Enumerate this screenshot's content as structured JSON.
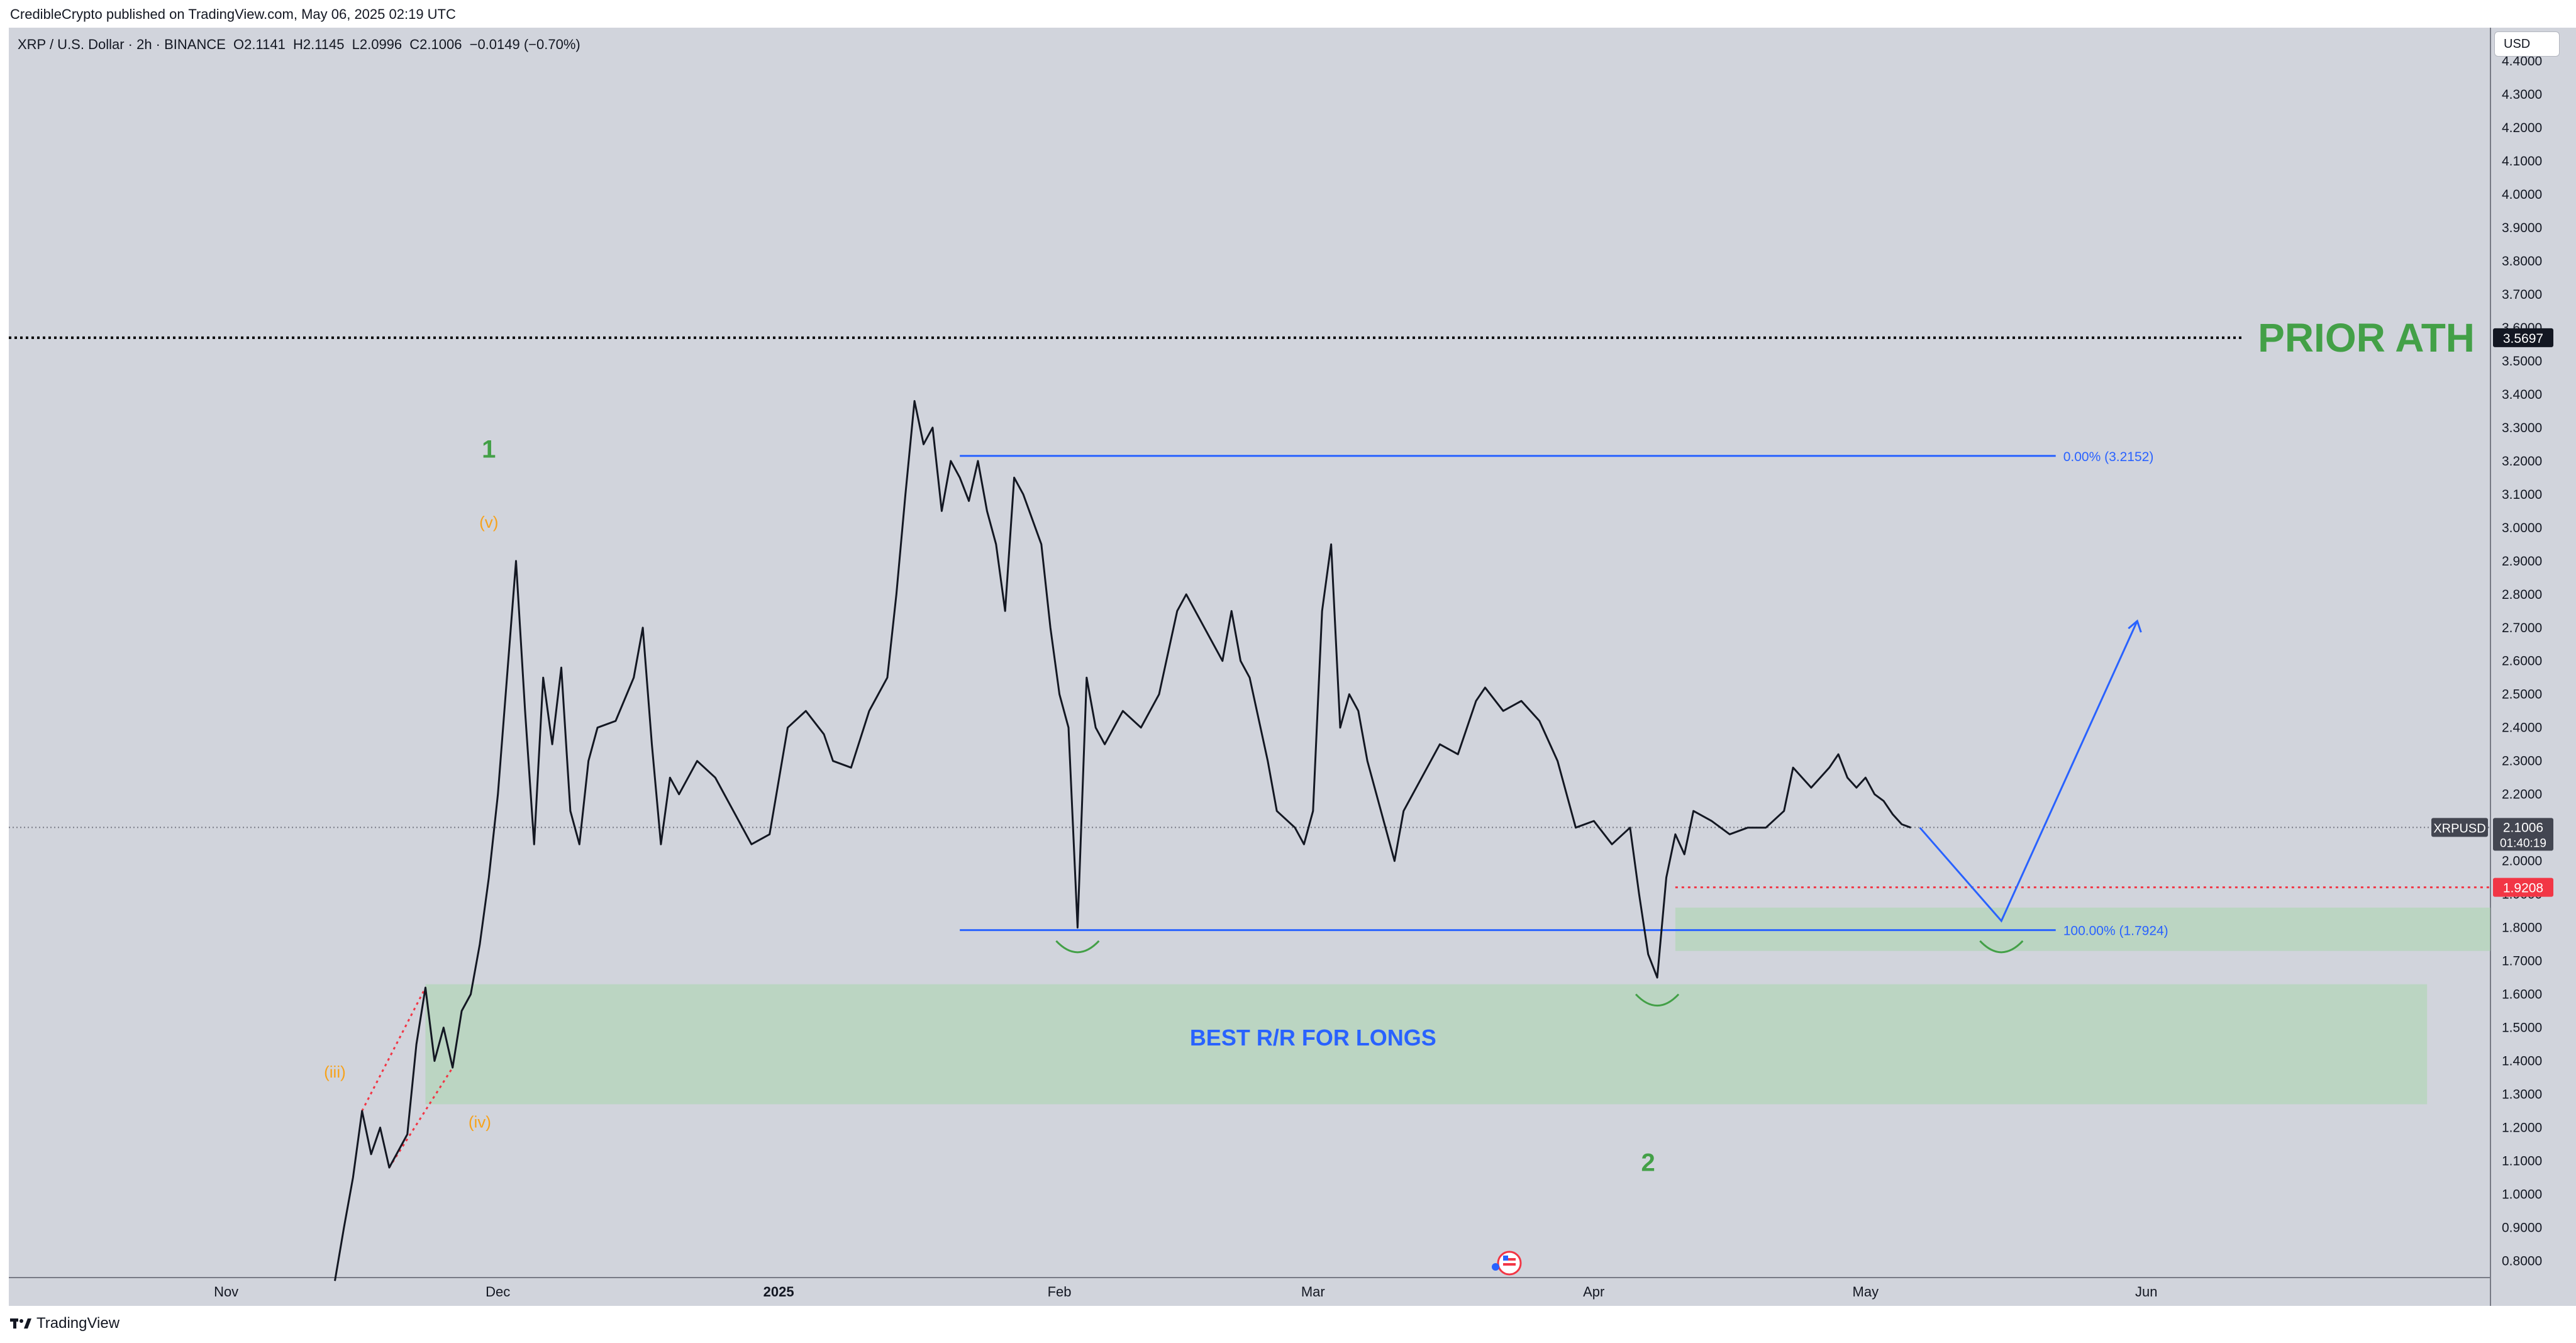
{
  "header": {
    "publish_line": "CredibleCrypto published on TradingView.com, May 06, 2025 02:19 UTC"
  },
  "legend": {
    "symbol": "XRP / U.S. Dollar · 2h · BINANCE",
    "o_label": "O",
    "o": "2.1141",
    "h_label": "H",
    "h": "2.1145",
    "l_label": "L",
    "l": "2.0996",
    "c_label": "C",
    "c": "2.1006",
    "change": "−0.0149 (−0.70%)"
  },
  "currency_button": "USD",
  "footer": {
    "brand": "TradingView"
  },
  "colors": {
    "background": "#d1d4dc",
    "price_line": "#131722",
    "fib_blue": "#2962ff",
    "zone_green": "#a5d6a7",
    "label_green": "#43a047",
    "orange": "#f7a21b",
    "red": "#f23645"
  },
  "chart_data": {
    "type": "line",
    "symbol": "XRPUSD",
    "timeframe": "2h",
    "x_ticks": [
      "Nov",
      "Dec",
      "2025",
      "Feb",
      "Mar",
      "Apr",
      "May",
      "Jun"
    ],
    "x_range": [
      "2024-10-08",
      "2025-07-09"
    ],
    "y_range": [
      0.75,
      4.5
    ],
    "y_ticks": [
      "0.8000",
      "0.9000",
      "1.0000",
      "1.1000",
      "1.2000",
      "1.3000",
      "1.4000",
      "1.5000",
      "1.6000",
      "1.7000",
      "1.8000",
      "1.9000",
      "2.0000",
      "2.1000",
      "2.2000",
      "2.3000",
      "2.4000",
      "2.5000",
      "2.6000",
      "2.7000",
      "2.8000",
      "2.9000",
      "3.0000",
      "3.1000",
      "3.2000",
      "3.3000",
      "3.4000",
      "3.5000",
      "3.6000",
      "3.7000",
      "3.8000",
      "3.9000",
      "4.0000",
      "4.1000",
      "4.2000",
      "4.3000",
      "4.4000"
    ],
    "series": [
      {
        "points": [
          [
            "2024-11-13",
            0.74
          ],
          [
            "2024-11-14",
            0.9
          ],
          [
            "2024-11-15",
            1.05
          ],
          [
            "2024-11-16",
            1.25
          ],
          [
            "2024-11-17",
            1.12
          ],
          [
            "2024-11-18",
            1.2
          ],
          [
            "2024-11-19",
            1.08
          ],
          [
            "2024-11-20",
            1.13
          ],
          [
            "2024-11-21",
            1.18
          ],
          [
            "2024-11-22",
            1.45
          ],
          [
            "2024-11-23",
            1.62
          ],
          [
            "2024-11-24",
            1.4
          ],
          [
            "2024-11-25",
            1.5
          ],
          [
            "2024-11-26",
            1.38
          ],
          [
            "2024-11-27",
            1.55
          ],
          [
            "2024-11-28",
            1.6
          ],
          [
            "2024-11-29",
            1.75
          ],
          [
            "2024-11-30",
            1.95
          ],
          [
            "2024-12-01",
            2.2
          ],
          [
            "2024-12-02",
            2.55
          ],
          [
            "2024-12-03",
            2.9
          ],
          [
            "2024-12-04",
            2.45
          ],
          [
            "2024-12-05",
            2.05
          ],
          [
            "2024-12-06",
            2.55
          ],
          [
            "2024-12-07",
            2.35
          ],
          [
            "2024-12-08",
            2.58
          ],
          [
            "2024-12-09",
            2.15
          ],
          [
            "2024-12-10",
            2.05
          ],
          [
            "2024-12-11",
            2.3
          ],
          [
            "2024-12-12",
            2.4
          ],
          [
            "2024-12-14",
            2.42
          ],
          [
            "2024-12-16",
            2.55
          ],
          [
            "2024-12-17",
            2.7
          ],
          [
            "2024-12-18",
            2.35
          ],
          [
            "2024-12-19",
            2.05
          ],
          [
            "2024-12-20",
            2.25
          ],
          [
            "2024-12-21",
            2.2
          ],
          [
            "2024-12-23",
            2.3
          ],
          [
            "2024-12-25",
            2.25
          ],
          [
            "2024-12-27",
            2.15
          ],
          [
            "2024-12-29",
            2.05
          ],
          [
            "2024-12-31",
            2.08
          ],
          [
            "2025-01-02",
            2.4
          ],
          [
            "2025-01-04",
            2.45
          ],
          [
            "2025-01-06",
            2.38
          ],
          [
            "2025-01-07",
            2.3
          ],
          [
            "2025-01-09",
            2.28
          ],
          [
            "2025-01-11",
            2.45
          ],
          [
            "2025-01-13",
            2.55
          ],
          [
            "2025-01-14",
            2.8
          ],
          [
            "2025-01-15",
            3.1
          ],
          [
            "2025-01-16",
            3.38
          ],
          [
            "2025-01-17",
            3.25
          ],
          [
            "2025-01-18",
            3.3
          ],
          [
            "2025-01-19",
            3.05
          ],
          [
            "2025-01-20",
            3.2
          ],
          [
            "2025-01-21",
            3.15
          ],
          [
            "2025-01-22",
            3.08
          ],
          [
            "2025-01-23",
            3.2
          ],
          [
            "2025-01-24",
            3.05
          ],
          [
            "2025-01-25",
            2.95
          ],
          [
            "2025-01-26",
            2.75
          ],
          [
            "2025-01-27",
            3.15
          ],
          [
            "2025-01-28",
            3.1
          ],
          [
            "2025-01-30",
            2.95
          ],
          [
            "2025-01-31",
            2.7
          ],
          [
            "2025-02-01",
            2.5
          ],
          [
            "2025-02-02",
            2.4
          ],
          [
            "2025-02-03",
            1.8
          ],
          [
            "2025-02-04",
            2.55
          ],
          [
            "2025-02-05",
            2.4
          ],
          [
            "2025-02-06",
            2.35
          ],
          [
            "2025-02-08",
            2.45
          ],
          [
            "2025-02-10",
            2.4
          ],
          [
            "2025-02-12",
            2.5
          ],
          [
            "2025-02-14",
            2.75
          ],
          [
            "2025-02-15",
            2.8
          ],
          [
            "2025-02-17",
            2.7
          ],
          [
            "2025-02-19",
            2.6
          ],
          [
            "2025-02-20",
            2.75
          ],
          [
            "2025-02-21",
            2.6
          ],
          [
            "2025-02-22",
            2.55
          ],
          [
            "2025-02-24",
            2.3
          ],
          [
            "2025-02-25",
            2.15
          ],
          [
            "2025-02-27",
            2.1
          ],
          [
            "2025-02-28",
            2.05
          ],
          [
            "2025-03-01",
            2.15
          ],
          [
            "2025-03-02",
            2.75
          ],
          [
            "2025-03-03",
            2.95
          ],
          [
            "2025-03-04",
            2.4
          ],
          [
            "2025-03-05",
            2.5
          ],
          [
            "2025-03-06",
            2.45
          ],
          [
            "2025-03-07",
            2.3
          ],
          [
            "2025-03-08",
            2.2
          ],
          [
            "2025-03-09",
            2.1
          ],
          [
            "2025-03-10",
            2.0
          ],
          [
            "2025-03-11",
            2.15
          ],
          [
            "2025-03-13",
            2.25
          ],
          [
            "2025-03-15",
            2.35
          ],
          [
            "2025-03-17",
            2.32
          ],
          [
            "2025-03-19",
            2.48
          ],
          [
            "2025-03-20",
            2.52
          ],
          [
            "2025-03-22",
            2.45
          ],
          [
            "2025-03-24",
            2.48
          ],
          [
            "2025-03-26",
            2.42
          ],
          [
            "2025-03-28",
            2.3
          ],
          [
            "2025-03-30",
            2.1
          ],
          [
            "2025-04-01",
            2.12
          ],
          [
            "2025-04-03",
            2.05
          ],
          [
            "2025-04-05",
            2.1
          ],
          [
            "2025-04-06",
            1.9
          ],
          [
            "2025-04-07",
            1.72
          ],
          [
            "2025-04-08",
            1.65
          ],
          [
            "2025-04-09",
            1.95
          ],
          [
            "2025-04-10",
            2.08
          ],
          [
            "2025-04-11",
            2.02
          ],
          [
            "2025-04-12",
            2.15
          ],
          [
            "2025-04-14",
            2.12
          ],
          [
            "2025-04-16",
            2.08
          ],
          [
            "2025-04-18",
            2.1
          ],
          [
            "2025-04-20",
            2.1
          ],
          [
            "2025-04-22",
            2.15
          ],
          [
            "2025-04-23",
            2.28
          ],
          [
            "2025-04-25",
            2.22
          ],
          [
            "2025-04-26",
            2.25
          ],
          [
            "2025-04-27",
            2.28
          ],
          [
            "2025-04-28",
            2.32
          ],
          [
            "2025-04-29",
            2.25
          ],
          [
            "2025-04-30",
            2.22
          ],
          [
            "2025-05-01",
            2.25
          ],
          [
            "2025-05-02",
            2.2
          ],
          [
            "2025-05-03",
            2.18
          ],
          [
            "2025-05-04",
            2.14
          ],
          [
            "2025-05-05",
            2.11
          ],
          [
            "2025-05-06",
            2.1
          ]
        ]
      }
    ],
    "fib": [
      {
        "label": "0.00% (3.2152)",
        "value": 3.2152,
        "from": "2025-01-21",
        "to": "2025-05-22"
      },
      {
        "label": "100.00% (1.7924)",
        "value": 1.7924,
        "from": "2025-01-21",
        "to": "2025-05-22"
      }
    ],
    "horizontal_lines": [
      {
        "value": 3.5697,
        "style": "dotted",
        "color": "#000000",
        "label": "PRIOR ATH"
      },
      {
        "value": 1.9208,
        "style": "dotted",
        "color": "#f23645"
      },
      {
        "value": 2.1006,
        "style": "dotted",
        "color": "#787b86"
      }
    ],
    "zones": [
      {
        "label": "BEST R/R FOR LONGS",
        "from": "2024-11-23",
        "to": "2025-07-02",
        "low": 1.27,
        "high": 1.63
      },
      {
        "label": "",
        "from": "2025-04-10",
        "to": "2025-07-09",
        "low": 1.73,
        "high": 1.86
      }
    ],
    "wave_labels": [
      {
        "text": "1",
        "date": "2024-11-30",
        "price": 3.21,
        "color": "#43a047"
      },
      {
        "text": "(v)",
        "date": "2024-11-30",
        "price": 3.0,
        "color": "#f7a21b"
      },
      {
        "text": "(iii)",
        "date": "2024-11-13",
        "price": 1.35,
        "color": "#f7a21b"
      },
      {
        "text": "(iv)",
        "date": "2024-11-29",
        "price": 1.2,
        "color": "#f7a21b"
      },
      {
        "text": "2",
        "date": "2025-04-07",
        "price": 1.07,
        "color": "#43a047"
      }
    ],
    "projection": [
      [
        "2025-05-07",
        2.1
      ],
      [
        "2025-05-16",
        1.82
      ],
      [
        "2025-05-31",
        2.72
      ]
    ],
    "price_labels": {
      "ath": "3.5697",
      "red": "1.9208",
      "last_symbol": "XRPUSD",
      "last": "2.1006",
      "countdown": "01:40:19"
    }
  }
}
